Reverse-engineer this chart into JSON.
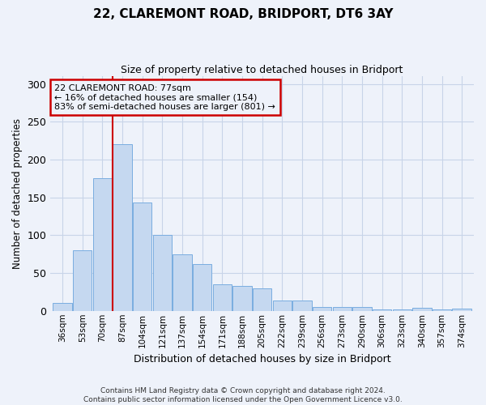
{
  "title1": "22, CLAREMONT ROAD, BRIDPORT, DT6 3AY",
  "title2": "Size of property relative to detached houses in Bridport",
  "xlabel": "Distribution of detached houses by size in Bridport",
  "ylabel": "Number of detached properties",
  "categories": [
    "36sqm",
    "53sqm",
    "70sqm",
    "87sqm",
    "104sqm",
    "121sqm",
    "137sqm",
    "154sqm",
    "171sqm",
    "188sqm",
    "205sqm",
    "222sqm",
    "239sqm",
    "256sqm",
    "273sqm",
    "290sqm",
    "306sqm",
    "323sqm",
    "340sqm",
    "357sqm",
    "374sqm"
  ],
  "values": [
    10,
    80,
    175,
    220,
    143,
    100,
    75,
    62,
    35,
    33,
    30,
    14,
    14,
    5,
    5,
    5,
    2,
    2,
    4,
    2,
    3
  ],
  "bar_color": "#c5d8f0",
  "bar_edge_color": "#7aade0",
  "grid_color": "#c8d4e8",
  "annotation_line_color": "#cc0000",
  "annotation_box_line1": "22 CLAREMONT ROAD: 77sqm",
  "annotation_box_line2": "← 16% of detached houses are smaller (154)",
  "annotation_box_line3": "83% of semi-detached houses are larger (801) →",
  "annotation_box_edge_color": "#cc0000",
  "ylim": [
    0,
    310
  ],
  "yticks": [
    0,
    50,
    100,
    150,
    200,
    250,
    300
  ],
  "footer_text": "Contains HM Land Registry data © Crown copyright and database right 2024.\nContains public sector information licensed under the Open Government Licence v3.0.",
  "background_color": "#eef2fa"
}
